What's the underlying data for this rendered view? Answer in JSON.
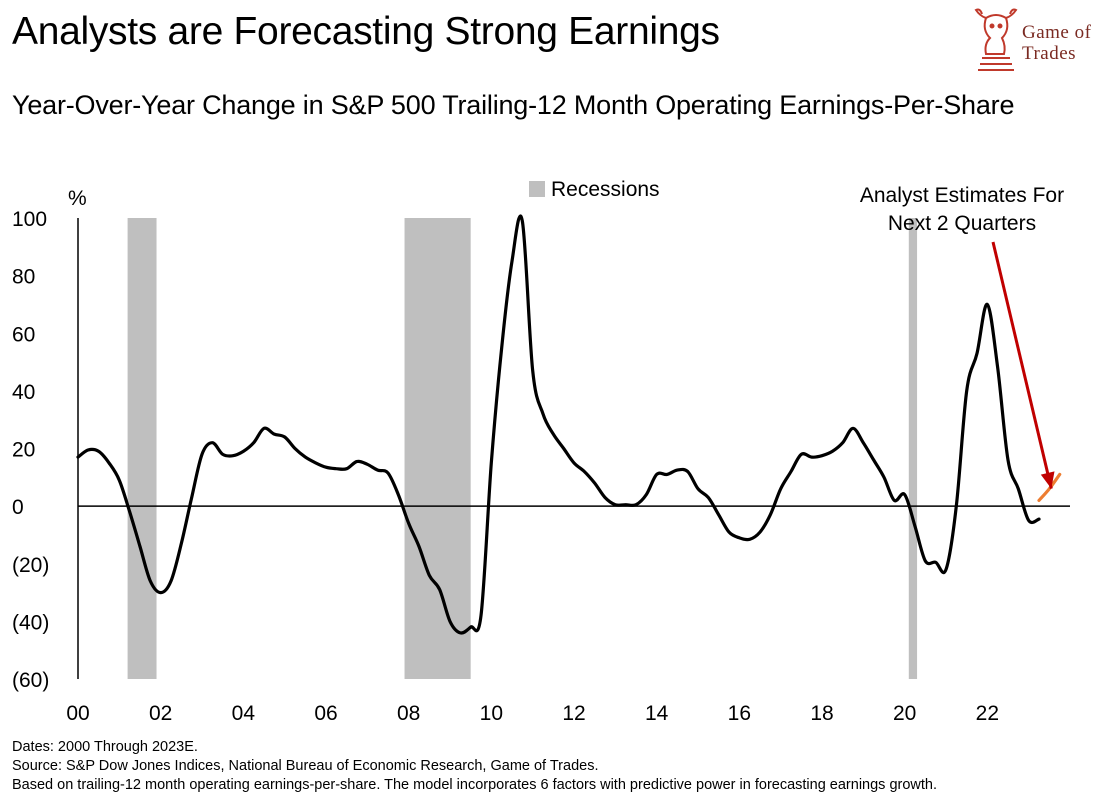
{
  "title": "Analysts are Forecasting Strong Earnings",
  "subtitle": "Year-Over-Year Change in S&P 500 Trailing-12 Month Operating Earnings-Per-Share",
  "logo": {
    "line1": "Game of",
    "line2": "Trades",
    "icon": "bull-knight-chess-icon",
    "color": "#c0392b"
  },
  "footnotes": {
    "dates": "Dates: 2000 Through 2023E.",
    "source": "Source: S&P Dow Jones Indices, National Bureau of Economic Research, Game of Trades.",
    "method": "Based on trailing-12 month operating earnings-per-share. The model incorporates 6 factors with predictive power in forecasting earnings growth."
  },
  "chart_data": {
    "type": "line",
    "ylabel": "%",
    "ylim": [
      -60,
      100
    ],
    "xlim": [
      2000,
      2024
    ],
    "y_ticks": [
      100,
      80,
      60,
      40,
      20,
      0,
      -20,
      -40,
      -60
    ],
    "y_tick_labels": [
      "100",
      "80",
      "60",
      "40",
      "20",
      "0",
      "(20)",
      "(40)",
      "(60)"
    ],
    "x_ticks": [
      2000,
      2002,
      2004,
      2006,
      2008,
      2010,
      2012,
      2014,
      2016,
      2018,
      2020,
      2022
    ],
    "x_tick_labels": [
      "00",
      "02",
      "04",
      "06",
      "08",
      "10",
      "12",
      "14",
      "16",
      "18",
      "20",
      "22"
    ],
    "legend": {
      "label": "Recessions",
      "color": "#bfbfbf",
      "placement": "top-center"
    },
    "recessions": [
      [
        2001.2,
        2001.9
      ],
      [
        2007.9,
        2009.5
      ],
      [
        2020.1,
        2020.3
      ]
    ],
    "annotation": {
      "text": [
        "Analyst Estimates For",
        "Next 2 Quarters"
      ],
      "arrow_color": "#c00000",
      "points_to": [
        2023.5,
        4
      ]
    },
    "series": [
      {
        "color": "#000000",
        "x": [
          2000.0,
          2000.25,
          2000.5,
          2000.75,
          2001.0,
          2001.25,
          2001.5,
          2001.75,
          2002.0,
          2002.25,
          2002.5,
          2002.75,
          2003.0,
          2003.25,
          2003.5,
          2003.75,
          2004.0,
          2004.25,
          2004.5,
          2004.75,
          2005.0,
          2005.25,
          2005.5,
          2005.75,
          2006.0,
          2006.25,
          2006.5,
          2006.75,
          2007.0,
          2007.25,
          2007.5,
          2007.75,
          2008.0,
          2008.25,
          2008.5,
          2008.75,
          2009.0,
          2009.25,
          2009.5,
          2009.75,
          2010.0,
          2010.25,
          2010.5,
          2010.75,
          2011.0,
          2011.25,
          2011.5,
          2011.75,
          2012.0,
          2012.25,
          2012.5,
          2012.75,
          2013.0,
          2013.25,
          2013.5,
          2013.75,
          2014.0,
          2014.25,
          2014.5,
          2014.75,
          2015.0,
          2015.25,
          2015.5,
          2015.75,
          2016.0,
          2016.25,
          2016.5,
          2016.75,
          2017.0,
          2017.25,
          2017.5,
          2017.75,
          2018.0,
          2018.25,
          2018.5,
          2018.75,
          2019.0,
          2019.25,
          2019.5,
          2019.75,
          2020.0,
          2020.25,
          2020.5,
          2020.75,
          2021.0,
          2021.25,
          2021.5,
          2021.75,
          2022.0,
          2022.25,
          2022.5,
          2022.75,
          2023.0,
          2023.25
        ],
        "values": [
          17,
          19.5,
          19,
          15,
          9,
          -2,
          -14,
          -26,
          -30,
          -26,
          -13,
          3,
          18,
          22,
          18,
          17.5,
          19,
          22,
          27,
          25,
          24,
          20,
          17,
          15,
          13.5,
          13,
          13,
          15.5,
          14.5,
          12.5,
          11.5,
          4,
          -6,
          -14,
          -24,
          -29,
          -40,
          -44,
          -42,
          -38,
          15,
          55,
          85,
          99,
          47,
          32,
          25,
          20,
          15,
          12,
          8,
          3,
          0.5,
          0.5,
          0.5,
          4,
          11,
          11,
          12.5,
          12,
          6,
          3,
          -3,
          -9,
          -11,
          -11.5,
          -9,
          -3,
          6,
          12,
          18,
          17,
          17.5,
          19,
          22,
          27,
          22,
          16,
          10,
          2,
          4,
          -7,
          -19,
          -19.5,
          -22,
          0,
          40,
          53,
          70,
          48,
          16,
          6,
          -5,
          -4.5
        ]
      },
      {
        "color": "#ed7d31",
        "x": [
          2023.25,
          2023.5,
          2023.75
        ],
        "values": [
          2,
          6,
          11
        ]
      }
    ]
  }
}
